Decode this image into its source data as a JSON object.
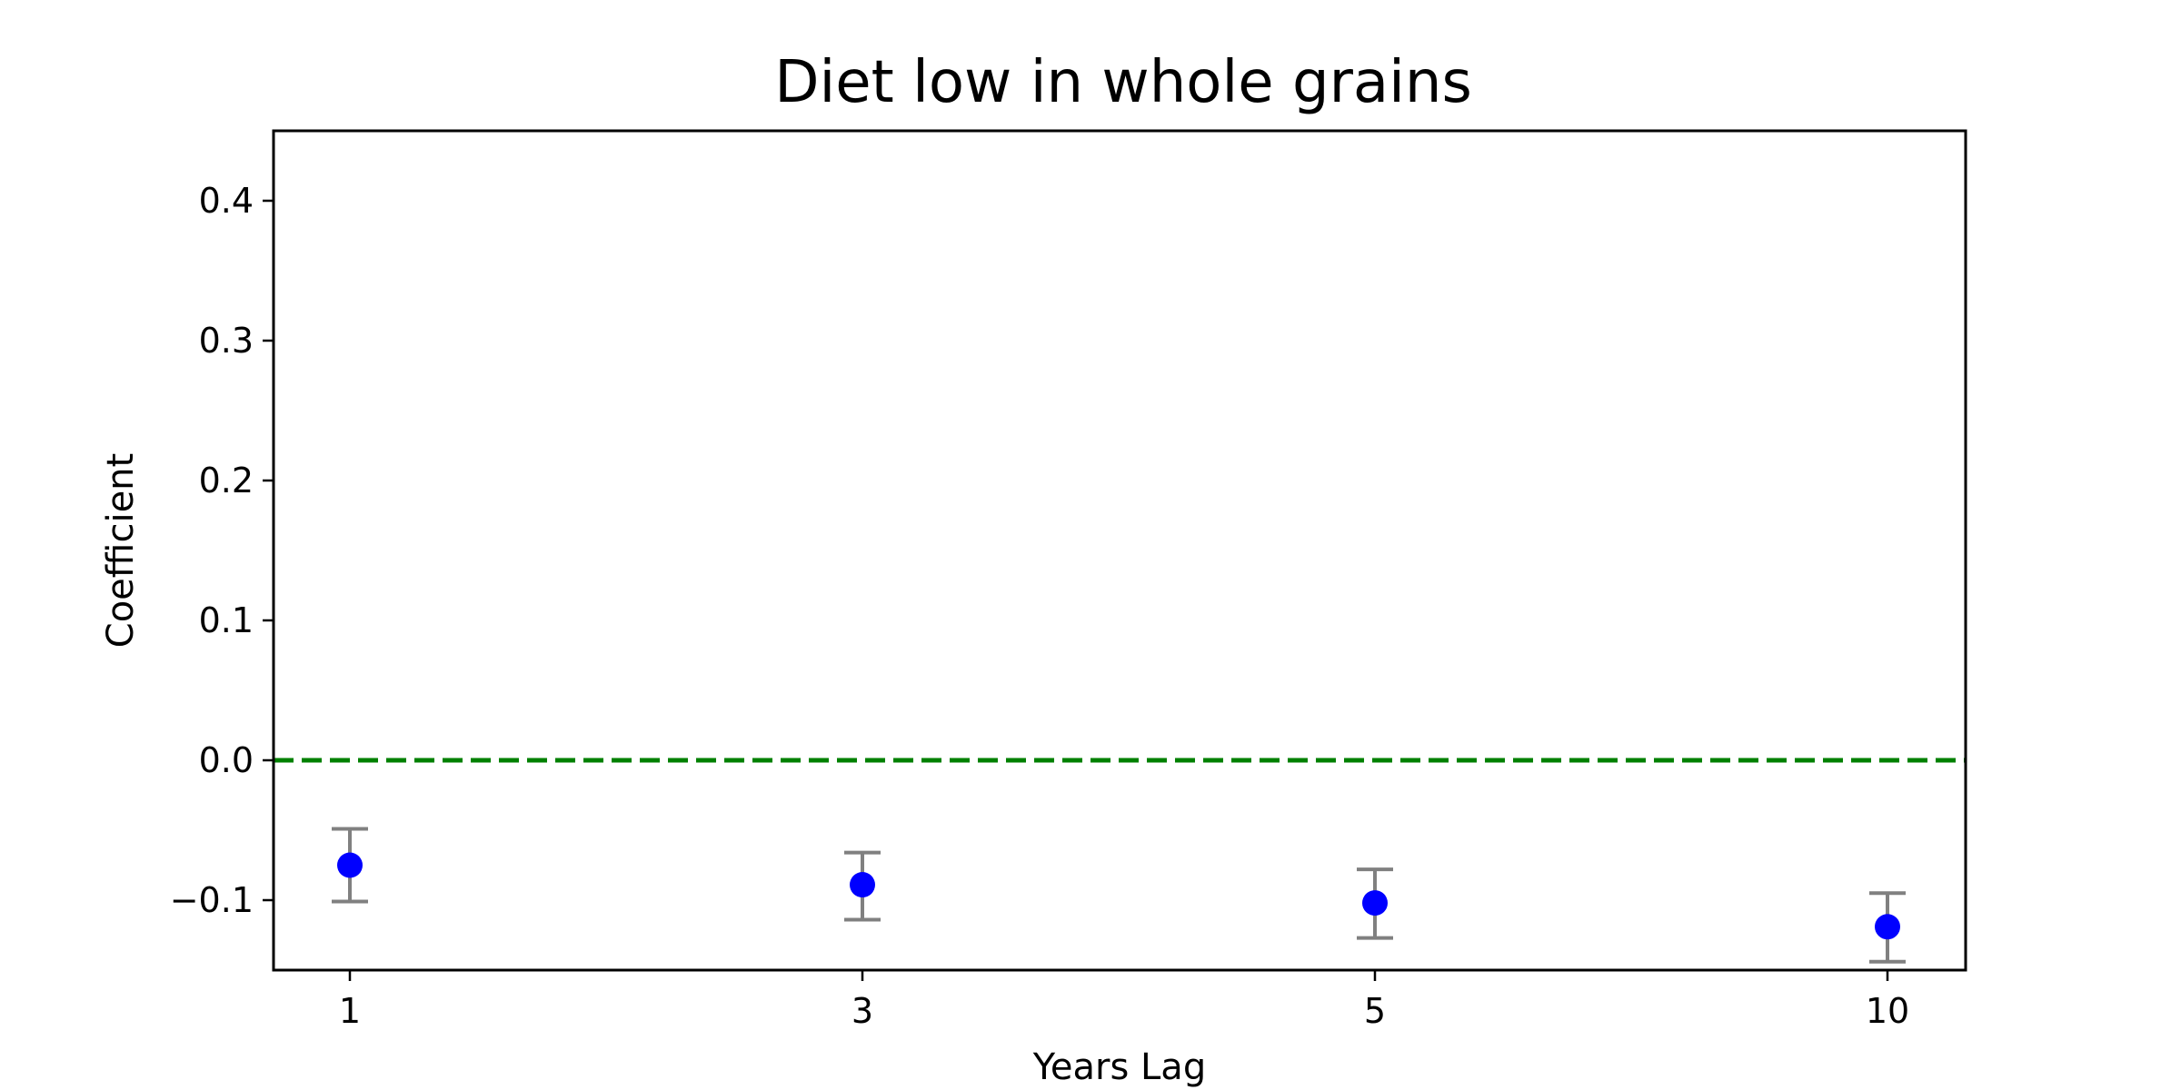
{
  "chart_data": {
    "type": "scatter",
    "title": "Diet low in whole grains",
    "xlabel": "Years Lag",
    "ylabel": "Coefficient",
    "categories": [
      "1",
      "3",
      "5",
      "10"
    ],
    "x_ticks": [
      "1",
      "3",
      "5",
      "10"
    ],
    "y_ticks": [
      {
        "value": -0.1,
        "label": "−0.1"
      },
      {
        "value": 0.0,
        "label": "0.0"
      },
      {
        "value": 0.1,
        "label": "0.1"
      },
      {
        "value": 0.2,
        "label": "0.2"
      },
      {
        "value": 0.3,
        "label": "0.3"
      },
      {
        "value": 0.4,
        "label": "0.4"
      }
    ],
    "ylim": [
      -0.15,
      0.45
    ],
    "series": [
      {
        "values": [
          -0.075,
          -0.089,
          -0.102,
          -0.119
        ],
        "lower": [
          -0.101,
          -0.114,
          -0.127,
          -0.144
        ],
        "upper": [
          -0.049,
          -0.066,
          -0.078,
          -0.095
        ],
        "marker_color": "#0000ff",
        "errorbar_color": "#808080"
      }
    ],
    "reference_line": {
      "y": 0.0,
      "color": "#008000",
      "style": "dashed"
    },
    "grid": false,
    "legend": "none"
  }
}
